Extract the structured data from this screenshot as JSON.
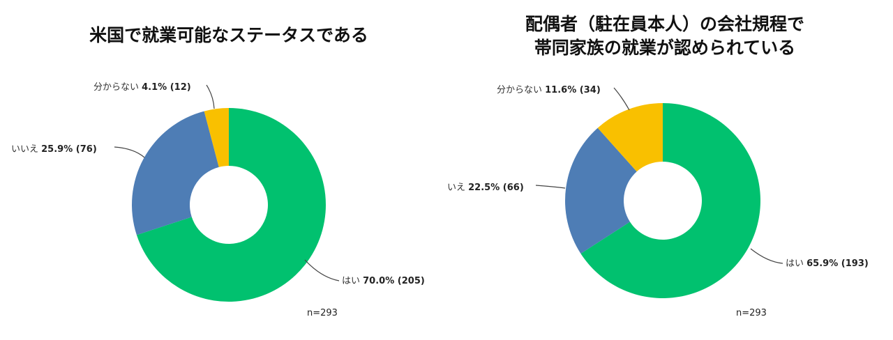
{
  "chart_data": [
    {
      "type": "pie",
      "title": "米国で就業可能なステータスである",
      "categories": [
        "はい",
        "いいえ",
        "分からない"
      ],
      "values": [
        205,
        76,
        12
      ],
      "percent_labels": [
        "70.0%",
        "25.9%",
        "4.1%"
      ],
      "count_labels": [
        "(205)",
        "(76)",
        "(12)"
      ],
      "colors": [
        "#01C16F",
        "#4E7DB5",
        "#F9C000"
      ],
      "n_label": "n=293"
    },
    {
      "type": "pie",
      "title": "配偶者（駐在員本人）の会社規程で\n帯同家族の就業が認められている",
      "categories": [
        "はい",
        "いいえ",
        "分からない"
      ],
      "values": [
        193,
        66,
        34
      ],
      "percent_labels": [
        "65.9%",
        "22.5%",
        "11.6%"
      ],
      "count_labels": [
        "(193)",
        "(66)",
        "(34)"
      ],
      "colors": [
        "#01C16F",
        "#4E7DB5",
        "#F9C000"
      ],
      "n_label": "n=293"
    }
  ]
}
